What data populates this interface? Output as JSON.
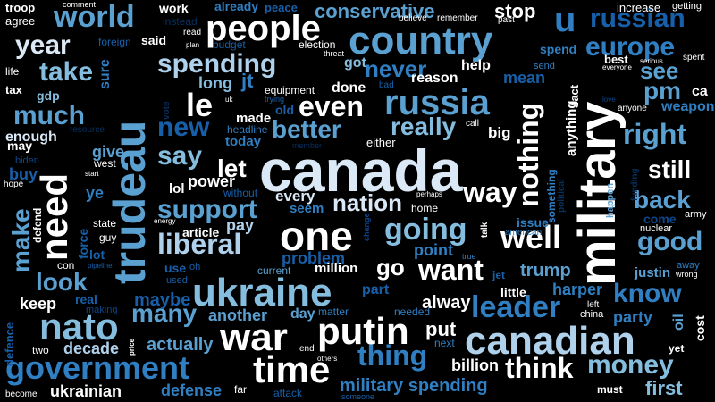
{
  "word_cloud": {
    "background": "#000000",
    "palette": [
      "#ffffff",
      "#dbe9f7",
      "#b0d1eb",
      "#85bddf",
      "#5aa0d0",
      "#2f7fc2",
      "#1760a9",
      "#0c468a",
      "#07305f"
    ],
    "words": {
      "canada": "canada",
      "military": "military",
      "trudeau": "trudeau",
      "country": "country",
      "ukraine": "ukraine",
      "canadian": "canadian",
      "people": "people",
      "one": "one",
      "war": "war",
      "putin": "putin",
      "nato": "nato",
      "russia": "russia",
      "time": "time",
      "government": "government",
      "need": "need",
      "world": "world",
      "u": "u",
      "liberal": "liberal",
      "leader": "leader",
      "going": "going",
      "spending": "spending",
      "year": "year",
      "take": "take",
      "much": "much",
      "le": "le",
      "even": "even",
      "support": "support",
      "well": "well",
      "good": "good",
      "right": "right",
      "know": "know",
      "money": "money",
      "think": "think",
      "thing": "thing",
      "want": "want",
      "way": "way",
      "nation": "nation",
      "better": "better",
      "really": "really",
      "say": "say",
      "new": "new",
      "let": "let",
      "still": "still",
      "back": "back",
      "nothing": "nothing",
      "make": "make",
      "many": "many",
      "look": "look",
      "russian": "russian",
      "europe": "europe",
      "pm": "pm",
      "see": "see",
      "never": "never",
      "conservative": "conservative",
      "stop": "stop",
      "go": "go",
      "put": "put",
      "actually": "actually",
      "decade": "decade",
      "trump": "trump",
      "harper": "harper",
      "party": "party",
      "first": "first",
      "maybe": "maybe",
      "another": "another",
      "day": "day",
      "always": "alway",
      "billion": "billion",
      "military_spending": "military spending",
      "defense": "defense",
      "ukrainian": "ukrainian",
      "keep": "keep",
      "pay": "pay",
      "article": "article",
      "power": "power",
      "every": "every",
      "seem": "seem",
      "point": "point",
      "problem": "problem",
      "million": "million",
      "done": "done",
      "reason": "reason",
      "help": "help",
      "got": "got",
      "long": "long",
      "jt": "jt",
      "made": "made",
      "today": "today",
      "big": "big",
      "enough": "enough",
      "give": "give",
      "buy": "buy",
      "ye": "ye",
      "gdp": "gdp",
      "tax": "tax",
      "life": "life",
      "agree": "agree",
      "troop": "troop",
      "said": "said",
      "work": "work",
      "instead": "instead",
      "already": "already",
      "peace": "peace",
      "comment": "comment",
      "read": "read",
      "budget": "budget",
      "plan": "plan",
      "election": "election",
      "threat": "threat",
      "foreign": "foreign",
      "sure": "sure",
      "equipment": "equipment",
      "trying": "trying",
      "old": "old",
      "headline": "headline",
      "vote": "vote",
      "resource": "resource",
      "may": "may",
      "biden": "biden",
      "start": "start",
      "west": "west",
      "hope": "hope",
      "without": "without",
      "lol": "lol",
      "defend": "defend",
      "state": "state",
      "energy": "energy",
      "guy": "guy",
      "force": "force",
      "lot": "lot",
      "con": "con",
      "pipeline": "pipeline",
      "use": "use",
      "oh": "oh",
      "used": "used",
      "current": "current",
      "part": "part",
      "matter": "matter",
      "needed": "needed",
      "making": "making",
      "real": "real",
      "defence": "defence",
      "two": "two",
      "price": "price",
      "end": "end",
      "others": "others",
      "become": "become",
      "far": "far",
      "attack": "attack",
      "someone": "someone",
      "mean": "mean",
      "believe": "believe",
      "remember": "remember",
      "past": "past",
      "send": "send",
      "spend": "spend",
      "bad": "bad",
      "best": "best",
      "everyone": "everyone",
      "fact": "fact",
      "anything": "anything",
      "increase": "increase",
      "getting": "getting",
      "spent": "spent",
      "serious": "serious",
      "ca": "ca",
      "weapon": "weapon",
      "anyone": "anyone",
      "love": "love",
      "call": "call",
      "either": "either",
      "member": "member",
      "something": "something",
      "political": "political",
      "happen": "happen",
      "funding": "funding",
      "come": "come",
      "army": "army",
      "nuclear": "nuclear",
      "justin": "justin",
      "away": "away",
      "wrong": "wrong",
      "oil": "oil",
      "cost": "cost",
      "yet": "yet",
      "must": "must",
      "issue": "issue",
      "american": "american",
      "talk": "talk",
      "true": "true",
      "jet": "jet",
      "little": "little",
      "left": "left",
      "china": "china",
      "next": "next",
      "perhaps": "perhaps",
      "home": "home",
      "change": "change",
      "uk": "uk"
    }
  }
}
